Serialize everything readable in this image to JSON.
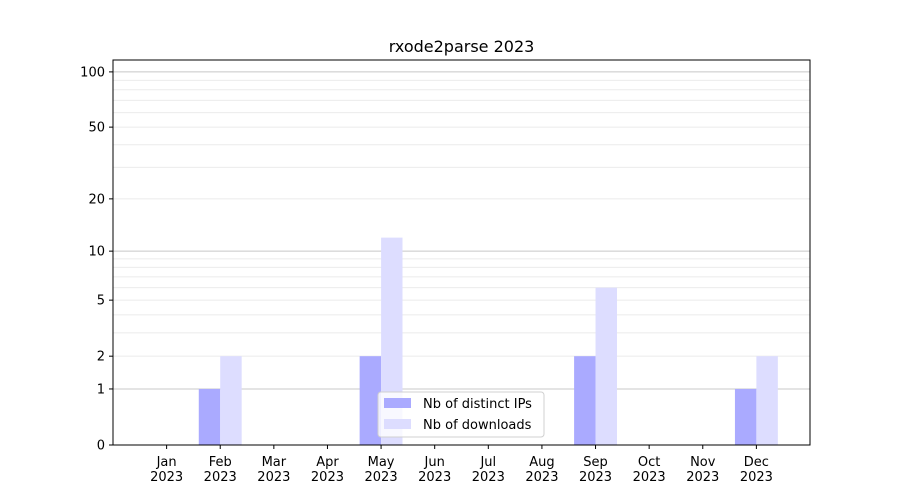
{
  "chart_data": {
    "type": "bar",
    "title": "rxode2parse 2023",
    "xlabel": "",
    "ylabel": "",
    "categories": [
      "Jan\n2023",
      "Feb\n2023",
      "Mar\n2023",
      "Apr\n2023",
      "May\n2023",
      "Jun\n2023",
      "Jul\n2023",
      "Aug\n2023",
      "Sep\n2023",
      "Oct\n2023",
      "Nov\n2023",
      "Dec\n2023"
    ],
    "series": [
      {
        "name": "Nb of distinct IPs",
        "color": "#aaaaff",
        "values": [
          0,
          1,
          0,
          0,
          2,
          0,
          0,
          0,
          2,
          0,
          0,
          1
        ]
      },
      {
        "name": "Nb of downloads",
        "color": "#ddddff",
        "values": [
          0,
          2,
          0,
          0,
          12,
          0,
          0,
          0,
          6,
          0,
          0,
          2
        ]
      }
    ],
    "y_scale": "log(1+y)",
    "ylim": [
      0,
      116
    ],
    "yticks": [
      0,
      1,
      2,
      5,
      10,
      20,
      50,
      100
    ],
    "grid": true,
    "legend_position": "lower-center"
  }
}
